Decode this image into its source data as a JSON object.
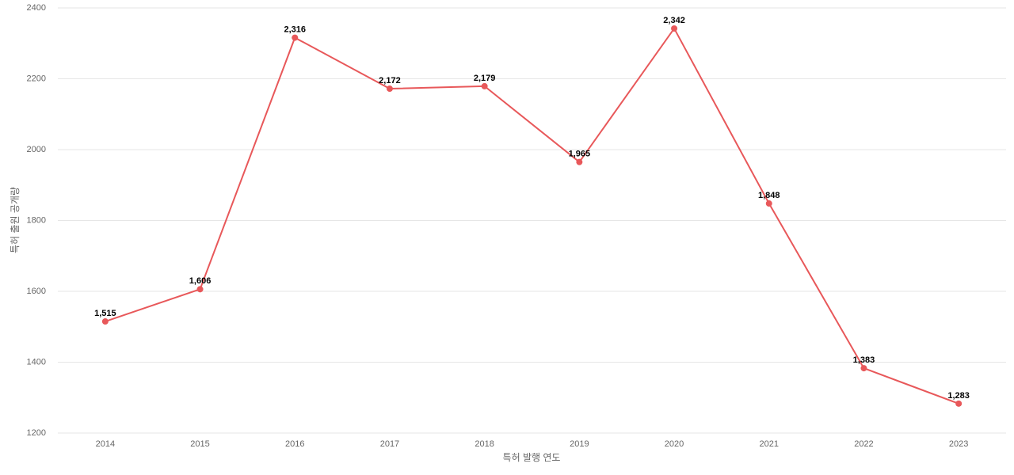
{
  "chart_data": {
    "type": "line",
    "x_label": "특허 발행 연도",
    "y_label": "특허 출원 공개량",
    "categories": [
      "2014",
      "2015",
      "2016",
      "2017",
      "2018",
      "2019",
      "2020",
      "2021",
      "2022",
      "2023"
    ],
    "values": [
      1515,
      1606,
      2316,
      2172,
      2179,
      1965,
      2342,
      1848,
      1383,
      1283
    ],
    "value_labels": [
      "1,515",
      "1,606",
      "2,316",
      "2,172",
      "2,179",
      "1,965",
      "2,342",
      "1,848",
      "1,383",
      "1,283"
    ],
    "color": "#e8585a",
    "ylim": [
      1200,
      2400
    ],
    "yticks": [
      1200,
      1400,
      1600,
      1800,
      2000,
      2200,
      2400
    ],
    "grid": true
  }
}
